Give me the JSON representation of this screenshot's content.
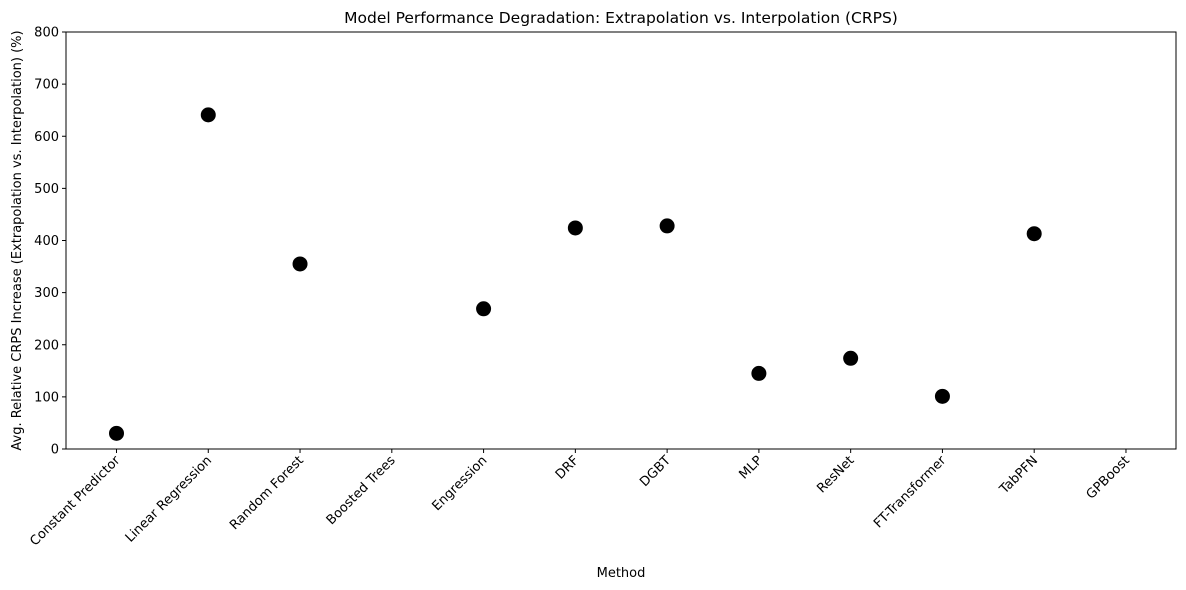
{
  "chart_data": {
    "type": "scatter",
    "title": "Model Performance Degradation: Extrapolation vs. Interpolation (CRPS)",
    "xlabel": "Method",
    "ylabel": "Avg. Relative CRPS Increase (Extrapolation vs. Interpolation) (%)",
    "categories": [
      "Constant Predictor",
      "Linear Regression",
      "Random Forest",
      "Boosted Trees",
      "Engression",
      "DRF",
      "DGBT",
      "MLP",
      "ResNet",
      "FT-Transformer",
      "TabPFN",
      "GPBoost"
    ],
    "values": [
      30,
      641,
      355,
      null,
      269,
      424,
      428,
      145,
      174,
      101,
      413,
      null
    ],
    "ylim": [
      0,
      800
    ],
    "yticks": [
      0,
      100,
      200,
      300,
      400,
      500,
      600,
      700,
      800
    ],
    "grid": false,
    "marker_color": "#000000"
  }
}
